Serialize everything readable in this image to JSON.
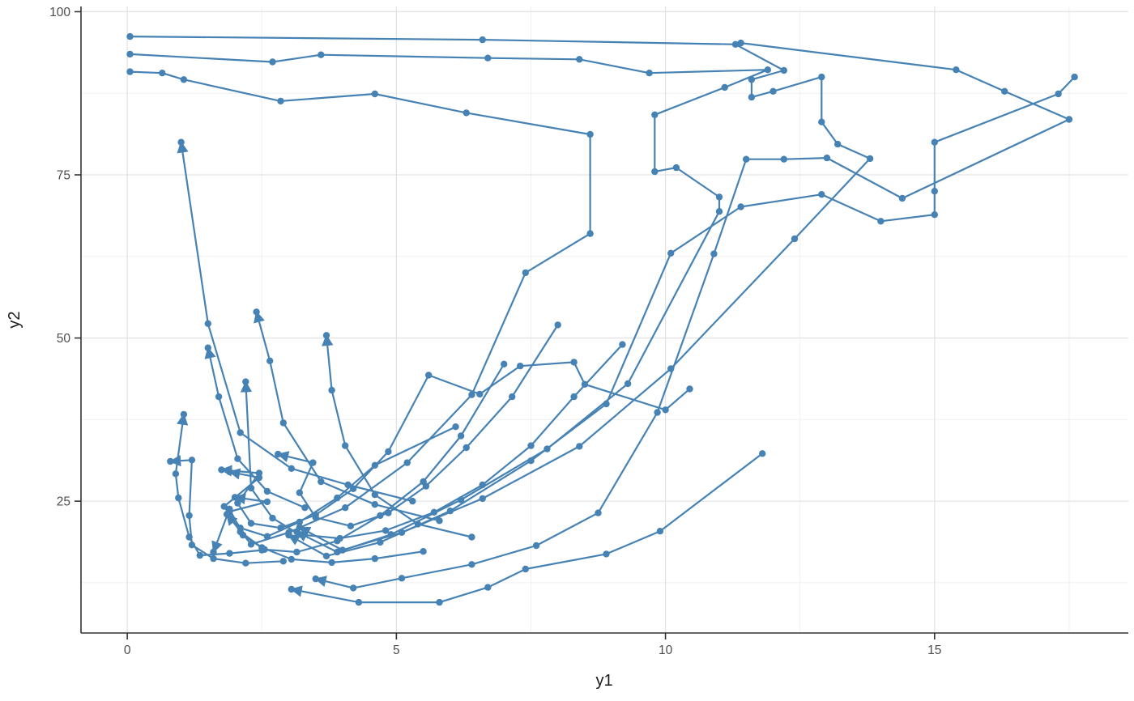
{
  "colors": {
    "series_blue": "#4682B4",
    "grid_major": "#e3e3e3",
    "grid_minor": "#f0f0f0",
    "axis_line": "#333333",
    "tick_label": "#4d4d4d",
    "axis_title": "#1a1a1a",
    "background": "#ffffff"
  },
  "chart_data": {
    "type": "line",
    "subtype": "connected-scatter-trajectories-with-arrows",
    "title": "",
    "xlabel": "y1",
    "ylabel": "y2",
    "legend": "none",
    "grid": "major+minor",
    "x_domain": [
      -0.86,
      18.6
    ],
    "y_domain": [
      4.8,
      100.8
    ],
    "x_ticks": [
      0,
      5,
      10,
      15
    ],
    "x_tick_labels": [
      "0",
      "5",
      "10",
      "15"
    ],
    "y_ticks": [
      25,
      50,
      75,
      100
    ],
    "y_tick_labels": [
      "25",
      "50",
      "75",
      "100"
    ],
    "x_minor_gridlines": [
      2.5,
      7.5,
      12.5,
      17.5
    ],
    "y_minor_gridlines": [
      12.5,
      37.5,
      62.5,
      87.5
    ],
    "marker": "circle",
    "arrowheads": "end-of-path",
    "trajectories": [
      {
        "points": [
          [
            0.05,
            96.2
          ],
          [
            6.6,
            95.7
          ],
          [
            11.3,
            95.0
          ],
          [
            12.2,
            91.0
          ],
          [
            11.6,
            89.6
          ],
          [
            11.6,
            86.9
          ],
          [
            12.0,
            87.8
          ],
          [
            12.9,
            90.0
          ],
          [
            12.9,
            83.1
          ],
          [
            13.2,
            79.7
          ],
          [
            13.8,
            77.5
          ],
          [
            12.4,
            65.2
          ],
          [
            10.1,
            45.3
          ],
          [
            8.4,
            33.4
          ],
          [
            6.6,
            25.4
          ],
          [
            5.1,
            20.2
          ],
          [
            4.0,
            17.5
          ],
          [
            3.2,
            21.0
          ]
        ],
        "arrow": true
      },
      {
        "points": [
          [
            0.05,
            93.5
          ],
          [
            2.7,
            92.3
          ],
          [
            3.6,
            93.4
          ],
          [
            6.7,
            92.9
          ],
          [
            8.4,
            92.7
          ],
          [
            9.7,
            90.6
          ],
          [
            11.9,
            91.1
          ],
          [
            11.1,
            88.4
          ],
          [
            9.8,
            84.2
          ],
          [
            9.8,
            75.5
          ],
          [
            10.2,
            76.1
          ],
          [
            11.0,
            71.6
          ],
          [
            11.0,
            69.4
          ],
          [
            9.3,
            43.0
          ],
          [
            7.8,
            33.0
          ],
          [
            6.2,
            25.2
          ],
          [
            4.9,
            19.9
          ],
          [
            3.9,
            17.2
          ],
          [
            3.15,
            20.3
          ]
        ],
        "arrow": true
      },
      {
        "points": [
          [
            0.05,
            90.8
          ],
          [
            0.65,
            90.6
          ],
          [
            1.05,
            89.6
          ],
          [
            2.85,
            86.3
          ],
          [
            4.6,
            87.4
          ],
          [
            6.3,
            84.5
          ],
          [
            8.6,
            81.2
          ],
          [
            8.6,
            66.0
          ],
          [
            7.4,
            60.0
          ],
          [
            6.4,
            41.3
          ],
          [
            5.2,
            30.9
          ],
          [
            4.05,
            24.0
          ],
          [
            3.0,
            20.2
          ],
          [
            2.3,
            18.4
          ],
          [
            1.85,
            23.0
          ]
        ],
        "arrow": true
      },
      {
        "points": [
          [
            17.6,
            90.0
          ],
          [
            17.3,
            87.4
          ],
          [
            15.0,
            80.0
          ],
          [
            15.0,
            72.5
          ],
          [
            15.0,
            68.9
          ],
          [
            14.0,
            67.9
          ],
          [
            12.9,
            72.0
          ],
          [
            11.4,
            70.1
          ],
          [
            10.1,
            63.0
          ],
          [
            8.9,
            39.9
          ],
          [
            7.5,
            31.2
          ],
          [
            6.0,
            23.5
          ],
          [
            4.7,
            18.7
          ],
          [
            3.7,
            16.6
          ],
          [
            3.0,
            19.8
          ]
        ],
        "arrow": true
      },
      {
        "points": [
          [
            11.4,
            95.2
          ],
          [
            15.4,
            91.1
          ],
          [
            16.3,
            87.8
          ],
          [
            17.5,
            83.5
          ],
          [
            14.4,
            71.4
          ],
          [
            13.0,
            77.6
          ],
          [
            12.2,
            77.4
          ],
          [
            11.5,
            77.4
          ],
          [
            10.9,
            62.9
          ],
          [
            9.85,
            38.6
          ],
          [
            8.75,
            23.2
          ],
          [
            7.6,
            18.2
          ],
          [
            6.4,
            15.3
          ],
          [
            5.1,
            13.2
          ],
          [
            4.2,
            11.7
          ],
          [
            3.5,
            13.1
          ]
        ],
        "arrow": true
      },
      {
        "points": [
          [
            11.8,
            32.3
          ],
          [
            9.9,
            20.4
          ],
          [
            8.9,
            16.9
          ],
          [
            7.4,
            14.6
          ],
          [
            6.7,
            11.8
          ],
          [
            5.8,
            9.5
          ],
          [
            4.3,
            9.5
          ],
          [
            3.05,
            11.5
          ]
        ],
        "arrow": true
      },
      {
        "points": [
          [
            10.45,
            42.2
          ],
          [
            10.0,
            39.0
          ],
          [
            8.5,
            42.9
          ],
          [
            8.3,
            46.3
          ],
          [
            7.3,
            45.7
          ],
          [
            6.55,
            41.4
          ],
          [
            5.6,
            44.3
          ],
          [
            4.85,
            32.6
          ],
          [
            4.2,
            26.9
          ],
          [
            3.5,
            22.9
          ],
          [
            2.85,
            20.9
          ],
          [
            2.3,
            21.6
          ],
          [
            2.05,
            24.7
          ],
          [
            2.45,
            29.3
          ],
          [
            1.75,
            29.8
          ]
        ],
        "arrow": true
      },
      {
        "points": [
          [
            5.3,
            25.0
          ],
          [
            4.1,
            27.5
          ],
          [
            3.05,
            30.0
          ],
          [
            2.1,
            35.5
          ],
          [
            1.5,
            52.2
          ],
          [
            1.0,
            80.0
          ]
        ],
        "arrow": true
      },
      {
        "points": [
          [
            5.8,
            22.0
          ],
          [
            4.6,
            24.5
          ],
          [
            3.6,
            28.0
          ],
          [
            2.9,
            37.0
          ],
          [
            2.65,
            46.5
          ],
          [
            2.4,
            54.0
          ]
        ],
        "arrow": true
      },
      {
        "points": [
          [
            6.4,
            19.5
          ],
          [
            5.4,
            21.5
          ],
          [
            4.6,
            26.0
          ],
          [
            4.05,
            33.5
          ],
          [
            3.8,
            42.0
          ],
          [
            3.7,
            50.4
          ]
        ],
        "arrow": true
      },
      {
        "points": [
          [
            3.3,
            24.0
          ],
          [
            2.6,
            26.5
          ],
          [
            2.05,
            31.5
          ],
          [
            1.7,
            41.0
          ],
          [
            1.5,
            48.5
          ]
        ],
        "arrow": true
      },
      {
        "points": [
          [
            2.5,
            17.5
          ],
          [
            1.9,
            17.0
          ],
          [
            1.35,
            16.7
          ],
          [
            1.15,
            19.5
          ],
          [
            0.95,
            25.5
          ],
          [
            0.9,
            29.2
          ],
          [
            1.05,
            38.3
          ]
        ],
        "arrow": true
      },
      {
        "points": [
          [
            2.9,
            15.8
          ],
          [
            2.2,
            15.5
          ],
          [
            1.6,
            16.2
          ],
          [
            1.2,
            18.3
          ],
          [
            1.15,
            22.8
          ],
          [
            1.2,
            31.3
          ],
          [
            0.8,
            31.1
          ]
        ],
        "arrow": true
      },
      {
        "points": [
          [
            5.5,
            17.3
          ],
          [
            4.6,
            16.2
          ],
          [
            3.8,
            15.6
          ],
          [
            3.05,
            16.1
          ],
          [
            2.5,
            17.9
          ],
          [
            2.1,
            20.3
          ],
          [
            1.8,
            24.2
          ],
          [
            2.45,
            28.6
          ],
          [
            1.9,
            29.5
          ]
        ],
        "arrow": true
      },
      {
        "points": [
          [
            6.1,
            36.4
          ],
          [
            4.6,
            30.5
          ],
          [
            3.9,
            25.5
          ],
          [
            3.2,
            21.8
          ],
          [
            2.6,
            19.6
          ],
          [
            2.1,
            20.9
          ],
          [
            1.9,
            23.4
          ],
          [
            2.6,
            24.9
          ],
          [
            2.0,
            25.6
          ]
        ],
        "arrow": true
      },
      {
        "points": [
          [
            9.2,
            49.0
          ],
          [
            8.3,
            41.0
          ],
          [
            7.5,
            33.5
          ],
          [
            6.6,
            27.5
          ],
          [
            5.7,
            23.3
          ],
          [
            4.8,
            20.5
          ],
          [
            3.95,
            19.3
          ],
          [
            3.2,
            19.9
          ],
          [
            2.7,
            22.4
          ],
          [
            2.3,
            27.0
          ],
          [
            2.2,
            43.3
          ]
        ],
        "arrow": true
      },
      {
        "points": [
          [
            7.0,
            46.0
          ],
          [
            6.2,
            35.0
          ],
          [
            5.5,
            28.0
          ],
          [
            4.7,
            22.8
          ],
          [
            3.9,
            18.9
          ],
          [
            3.15,
            17.2
          ],
          [
            2.55,
            17.6
          ],
          [
            2.15,
            19.8
          ],
          [
            1.9,
            23.8
          ],
          [
            1.6,
            17.2
          ]
        ],
        "arrow": true
      },
      {
        "points": [
          [
            8.0,
            52.0
          ],
          [
            7.15,
            41.0
          ],
          [
            6.3,
            33.2
          ],
          [
            5.55,
            27.3
          ],
          [
            4.85,
            23.2
          ],
          [
            4.15,
            21.2
          ],
          [
            3.5,
            22.5
          ],
          [
            3.2,
            26.3
          ],
          [
            3.45,
            30.9
          ],
          [
            2.8,
            32.2
          ]
        ],
        "arrow": true
      }
    ]
  }
}
